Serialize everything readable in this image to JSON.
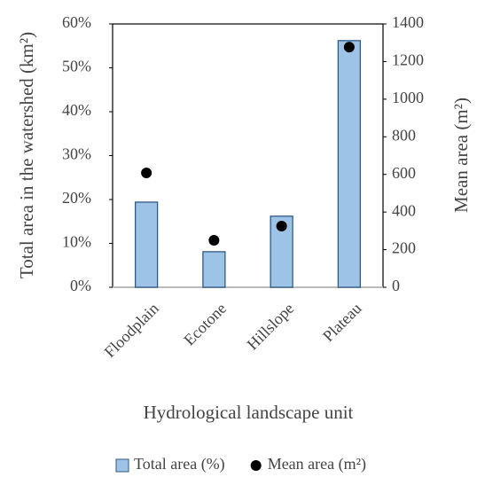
{
  "chart_data": {
    "type": "bar",
    "categories": [
      "Floodplain",
      "Ecotone",
      "Hillslope",
      "Plateau"
    ],
    "series": [
      {
        "name": "Total area (%)",
        "type": "bar",
        "color": "#9dc3e6",
        "values": [
          19.4,
          8.1,
          16.2,
          56.2
        ]
      },
      {
        "name": "Mean area (m²)",
        "type": "scatter",
        "axis": "y2",
        "color": "#000000",
        "values": [
          608,
          250,
          325,
          1277
        ]
      }
    ],
    "ylabel": "Total area in the watershed (km²)",
    "y2label": "Mean area (m²)",
    "xlabel": "Hydrological landscape unit",
    "ylim": [
      0,
      60
    ],
    "yticks": [
      {
        "value": 0,
        "label": "0%"
      },
      {
        "value": 10,
        "label": "10%"
      },
      {
        "value": 20,
        "label": "20%"
      },
      {
        "value": 30,
        "label": "30%"
      },
      {
        "value": 40,
        "label": "40%"
      },
      {
        "value": 50,
        "label": "50%"
      },
      {
        "value": 60,
        "label": "60%"
      }
    ],
    "y2lim": [
      0,
      1400
    ],
    "y2ticks": [
      0,
      200,
      400,
      600,
      800,
      1000,
      1200,
      1400
    ],
    "grid": false,
    "legend": "bottom"
  }
}
